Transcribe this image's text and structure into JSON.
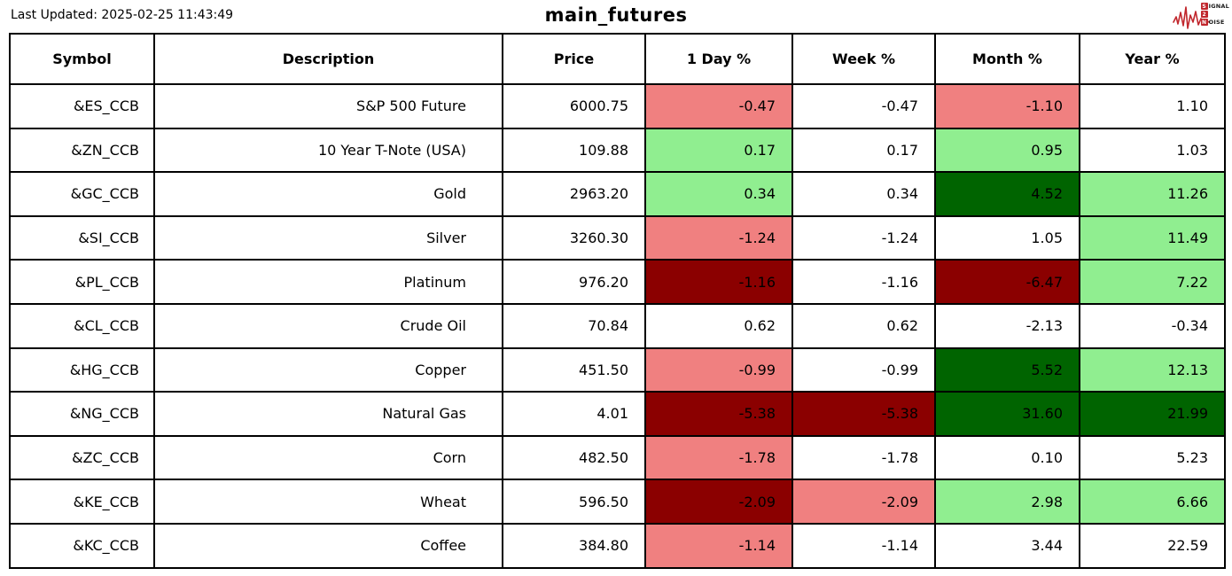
{
  "header": {
    "last_updated": "Last Updated: 2025-02-25 11:43:49",
    "title": "main_futures",
    "logo": {
      "name": "signal-2-noise",
      "accent_color": "#c1272d",
      "lines": [
        {
          "badge": "S",
          "rest": "IGNAL"
        },
        {
          "badge": "2",
          "rest": ""
        },
        {
          "badge": "N",
          "rest": "OISE"
        }
      ]
    }
  },
  "chart_data": {
    "type": "table",
    "title": "main_futures",
    "last_updated": "2025-02-25 11:43:49",
    "columns": [
      "Symbol",
      "Description",
      "Price",
      "1 Day %",
      "Week %",
      "Month %",
      "Year %"
    ],
    "color_legend": {
      "neutral": "#FFFFFF",
      "positive": "#90EE90",
      "positive_strong": "#006400",
      "negative": "#F08080",
      "negative_strong": "#8B0000"
    },
    "rows": [
      {
        "symbol": "&ES_CCB",
        "description": "S&P 500 Future",
        "price": "6000.75",
        "pct": [
          "-0.47",
          "-0.47",
          "-1.10",
          "1.10"
        ],
        "pct_bg": [
          "negative",
          "neutral",
          "negative",
          "neutral"
        ]
      },
      {
        "symbol": "&ZN_CCB",
        "description": "10 Year T-Note (USA)",
        "price": "109.88",
        "pct": [
          "0.17",
          "0.17",
          "0.95",
          "1.03"
        ],
        "pct_bg": [
          "positive",
          "neutral",
          "positive",
          "neutral"
        ]
      },
      {
        "symbol": "&GC_CCB",
        "description": "Gold",
        "price": "2963.20",
        "pct": [
          "0.34",
          "0.34",
          "4.52",
          "11.26"
        ],
        "pct_bg": [
          "positive",
          "neutral",
          "positive_strong",
          "positive"
        ]
      },
      {
        "symbol": "&SI_CCB",
        "description": "Silver",
        "price": "3260.30",
        "pct": [
          "-1.24",
          "-1.24",
          "1.05",
          "11.49"
        ],
        "pct_bg": [
          "negative",
          "neutral",
          "neutral",
          "positive"
        ]
      },
      {
        "symbol": "&PL_CCB",
        "description": "Platinum",
        "price": "976.20",
        "pct": [
          "-1.16",
          "-1.16",
          "-6.47",
          "7.22"
        ],
        "pct_bg": [
          "negative_strong",
          "neutral",
          "negative_strong",
          "positive"
        ]
      },
      {
        "symbol": "&CL_CCB",
        "description": "Crude Oil",
        "price": "70.84",
        "pct": [
          "0.62",
          "0.62",
          "-2.13",
          "-0.34"
        ],
        "pct_bg": [
          "neutral",
          "neutral",
          "neutral",
          "neutral"
        ]
      },
      {
        "symbol": "&HG_CCB",
        "description": "Copper",
        "price": "451.50",
        "pct": [
          "-0.99",
          "-0.99",
          "5.52",
          "12.13"
        ],
        "pct_bg": [
          "negative",
          "neutral",
          "positive_strong",
          "positive"
        ]
      },
      {
        "symbol": "&NG_CCB",
        "description": "Natural Gas",
        "price": "4.01",
        "pct": [
          "-5.38",
          "-5.38",
          "31.60",
          "21.99"
        ],
        "pct_bg": [
          "negative_strong",
          "negative_strong",
          "positive_strong",
          "positive_strong"
        ]
      },
      {
        "symbol": "&ZC_CCB",
        "description": "Corn",
        "price": "482.50",
        "pct": [
          "-1.78",
          "-1.78",
          "0.10",
          "5.23"
        ],
        "pct_bg": [
          "negative",
          "neutral",
          "neutral",
          "neutral"
        ]
      },
      {
        "symbol": "&KE_CCB",
        "description": "Wheat",
        "price": "596.50",
        "pct": [
          "-2.09",
          "-2.09",
          "2.98",
          "6.66"
        ],
        "pct_bg": [
          "negative_strong",
          "negative",
          "positive",
          "positive"
        ]
      },
      {
        "symbol": "&KC_CCB",
        "description": "Coffee",
        "price": "384.80",
        "pct": [
          "-1.14",
          "-1.14",
          "3.44",
          "22.59"
        ],
        "pct_bg": [
          "negative",
          "neutral",
          "neutral",
          "neutral"
        ]
      }
    ]
  }
}
